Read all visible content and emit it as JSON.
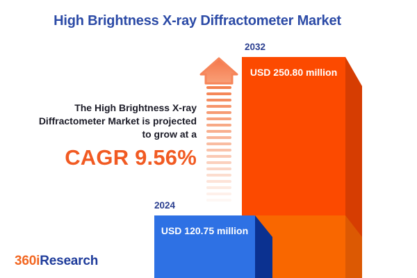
{
  "title": {
    "text": "High Brightness X-ray Diffractometer Market",
    "color": "#2B4AA6"
  },
  "projection": {
    "lines": [
      "The High Brightness X-ray",
      "Diffractometer Market is projected",
      "to grow at a"
    ],
    "cagr_text": "CAGR 9.56%",
    "text_color": "#1B1B27",
    "cagr_color": "#F15A22"
  },
  "chart_data": {
    "type": "bar",
    "title": "High Brightness X-ray Diffractometer Market",
    "categories": [
      "2024",
      "2032"
    ],
    "values": [
      120.75,
      250.8
    ],
    "unit": "USD million",
    "value_labels": [
      "USD 120.75 million",
      "USD 250.80 million"
    ],
    "cagr_percent": 9.56,
    "xlabel": "",
    "ylabel": "",
    "legend": false,
    "grid": false,
    "bar_colors": [
      "#2E71E4",
      "#FC4A00"
    ],
    "style": "3d-cuboid-infographic"
  },
  "bars": [
    {
      "year": "2024",
      "label": "USD 120.75 million",
      "value": 120.75,
      "front": "#2E71E4",
      "side": "#0B3190"
    },
    {
      "year": "2032",
      "label": "USD 250.80 million",
      "value": 250.8,
      "front": "#FC4A00",
      "side": "#D63D02"
    }
  ],
  "decor": {
    "base_block_front": "#F96700",
    "base_block_side": "#DC5903"
  },
  "arrow": {
    "head_color_top": "#F4764A",
    "head_color_bottom": "#F9A078",
    "outline_color": "#F6855A",
    "trail_color": "#F4814F",
    "trail_dash_count": 19
  },
  "logo": {
    "part1": "360i",
    "part2": "Research",
    "part1_color": "#F26722",
    "part2_color": "#1F3C9B"
  }
}
